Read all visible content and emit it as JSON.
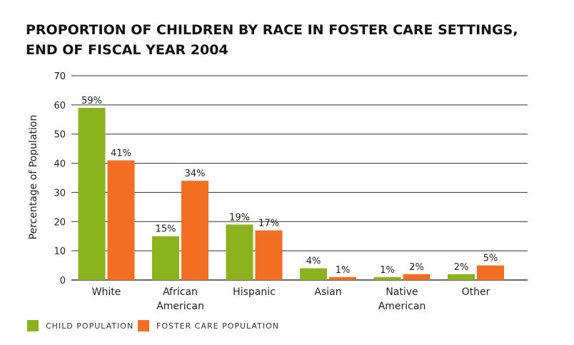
{
  "chart_data": {
    "type": "bar",
    "title_lines": [
      "PROPORTION OF CHILDREN BY RACE IN FOSTER CARE SETTINGS,",
      "END OF FISCAL YEAR 2004"
    ],
    "ylabel": "Percentage of Population",
    "ylim": [
      0,
      70
    ],
    "yticks": [
      0,
      10,
      20,
      30,
      40,
      50,
      60,
      70
    ],
    "grid": true,
    "categories": [
      [
        "White"
      ],
      [
        "African",
        "American"
      ],
      [
        "Hispanic"
      ],
      [
        "Asian"
      ],
      [
        "Native",
        "American"
      ],
      [
        "Other"
      ]
    ],
    "series": [
      {
        "name": "CHILD POPULATION",
        "color": "#8cb21e",
        "values": [
          59,
          15,
          19,
          4,
          1,
          2
        ],
        "labels": [
          "59%",
          "15%",
          "19%",
          "4%",
          "1%",
          "2%"
        ]
      },
      {
        "name": "FOSTER CARE POPULATION",
        "color": "#f26e22",
        "values": [
          41,
          34,
          17,
          1,
          2,
          5
        ],
        "labels": [
          "41%",
          "34%",
          "17%",
          "1%",
          "2%",
          "5%"
        ]
      }
    ],
    "legend_position": "bottom-left"
  }
}
